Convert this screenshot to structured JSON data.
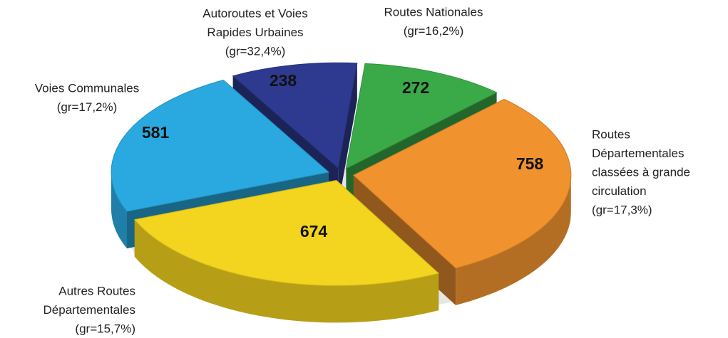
{
  "chart_data": {
    "type": "pie",
    "categories": [
      [
        "Routes Nationales"
      ],
      [
        "Routes",
        "Départementales",
        "classées à grande",
        "circulation"
      ],
      [
        "Autres Routes",
        "Départementales"
      ],
      [
        "Voies Communales"
      ],
      [
        "Autoroutes et Voies",
        "Rapides Urbaines"
      ]
    ],
    "annotations": [
      "(gr=16,2%)",
      "(gr=17,3%)",
      "(gr=15,7%)",
      "(gr=17,2%)",
      "(gr=32,4%)"
    ],
    "values": [
      272,
      758,
      674,
      581,
      238
    ],
    "colors": [
      "#3aaa48",
      "#f0922e",
      "#f3d41e",
      "#29a9e0",
      "#2e3a90"
    ]
  }
}
